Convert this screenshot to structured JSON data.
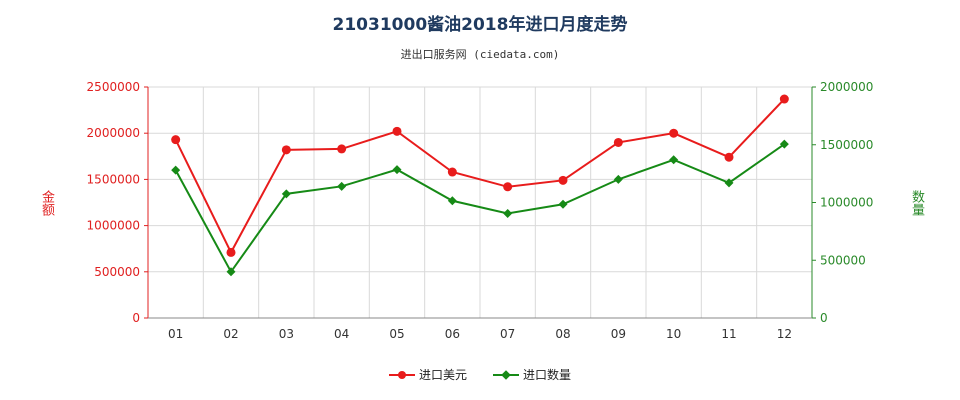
{
  "header": {
    "title": "21031000酱油2018年进口月度走势",
    "subtitle": "进出口服务网 (ciedata.com)"
  },
  "chart_data": {
    "type": "line",
    "categories": [
      "01",
      "02",
      "03",
      "04",
      "05",
      "06",
      "07",
      "08",
      "09",
      "10",
      "11",
      "12"
    ],
    "left_axis": {
      "label": "金额",
      "ylim": [
        0,
        2500000
      ],
      "ticks": [
        "0",
        "500000",
        "1000000",
        "1500000",
        "2000000",
        "2500000"
      ],
      "color": "#e02020"
    },
    "right_axis": {
      "label": "数量",
      "ylim": [
        0,
        2000000
      ],
      "ticks": [
        "0",
        "500000",
        "1000000",
        "1500000",
        "2000000"
      ],
      "color": "#2a8a2a"
    },
    "grid": true,
    "legend_position": "bottom-center",
    "series": [
      {
        "name": "进口美元",
        "axis": "left",
        "color": "#e81c1c",
        "marker": "circle",
        "values": [
          1930000,
          710000,
          1820000,
          1830000,
          2020000,
          1580000,
          1420000,
          1490000,
          1900000,
          2000000,
          1740000,
          2370000
        ]
      },
      {
        "name": "进口数量",
        "axis": "right",
        "color": "#168a16",
        "marker": "diamond",
        "values": [
          1280000,
          400000,
          1075000,
          1140000,
          1285000,
          1015000,
          905000,
          985000,
          1200000,
          1370000,
          1170000,
          1505000
        ]
      }
    ]
  }
}
